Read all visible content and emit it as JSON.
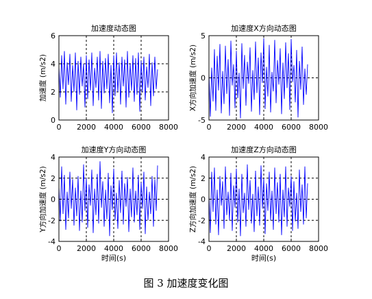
{
  "figure_caption": "图 3  加速度变化图",
  "colors": {
    "signal": "#0000ff",
    "axes": "#000000",
    "grid": "#000000"
  },
  "chart_data": [
    {
      "type": "line",
      "title": "加速度动态图",
      "xlabel": "",
      "ylabel": "加速度 (m/s2)",
      "xlim": [
        0,
        8000
      ],
      "ylim": [
        0,
        6
      ],
      "xticks": [
        0,
        2000,
        4000,
        6000,
        8000
      ],
      "yticks": [
        0,
        2,
        4,
        6
      ],
      "grid": true,
      "series": [
        {
          "x": [
            0,
            100,
            200,
            300,
            400,
            500,
            600,
            700,
            800,
            900,
            1000,
            1100,
            1200,
            1300,
            1400,
            1500,
            1600,
            1700,
            1800,
            1900,
            2000,
            2100,
            2200,
            2300,
            2400,
            2500,
            2600,
            2700,
            2800,
            2900,
            3000,
            3100,
            3200,
            3300,
            3400,
            3500,
            3600,
            3700,
            3800,
            3900,
            4000,
            4100,
            4200,
            4300,
            4400,
            4500,
            4600,
            4700,
            4800,
            4900,
            5000,
            5100,
            5200,
            5300,
            5400,
            5500,
            5600,
            5700,
            5800,
            5900,
            6000,
            6100,
            6200,
            6300,
            6400,
            6500,
            6600,
            6700,
            6800,
            6900,
            7000,
            7100,
            7200
          ],
          "y": [
            3.8,
            1.6,
            4.6,
            2.2,
            4.9,
            1.1,
            4.1,
            2.5,
            4.7,
            1.3,
            3.9,
            2.0,
            4.8,
            0.7,
            4.2,
            1.8,
            4.5,
            2.4,
            4.0,
            0.9,
            4.6,
            1.5,
            4.3,
            2.1,
            4.8,
            1.0,
            3.7,
            2.3,
            4.5,
            1.4,
            4.9,
            0.8,
            4.2,
            1.9,
            4.4,
            2.2,
            4.7,
            1.2,
            3.9,
            0.5,
            4.6,
            1.7,
            4.8,
            2.0,
            4.1,
            1.1,
            4.5,
            2.4,
            4.3,
            0.9,
            4.9,
            1.6,
            4.0,
            2.1,
            4.6,
            1.3,
            4.4,
            1.8,
            4.8,
            0.6,
            4.2,
            2.0,
            4.5,
            1.4,
            3.8,
            2.3,
            4.7,
            1.0,
            4.1,
            1.7,
            4.5,
            2.2,
            3.6
          ]
        }
      ]
    },
    {
      "type": "line",
      "title": "加速度X方向动态图",
      "xlabel": "",
      "ylabel": "X方向加速度 (m/s2)",
      "xlim": [
        0,
        8000
      ],
      "ylim": [
        -5,
        5
      ],
      "xticks": [
        0,
        2000,
        4000,
        6000,
        8000
      ],
      "yticks": [
        -5,
        0,
        5
      ],
      "grid": true,
      "series": [
        {
          "x": [
            0,
            100,
            200,
            300,
            400,
            500,
            600,
            700,
            800,
            900,
            1000,
            1100,
            1200,
            1300,
            1400,
            1500,
            1600,
            1700,
            1800,
            1900,
            2000,
            2100,
            2200,
            2300,
            2400,
            2500,
            2600,
            2700,
            2800,
            2900,
            3000,
            3100,
            3200,
            3300,
            3400,
            3500,
            3600,
            3700,
            3800,
            3900,
            4000,
            4100,
            4200,
            4300,
            4400,
            4500,
            4600,
            4700,
            4800,
            4900,
            5000,
            5100,
            5200,
            5300,
            5400,
            5500,
            5600,
            5700,
            5800,
            5900,
            6000,
            6100,
            6200,
            6300,
            6400,
            6500,
            6600,
            6700,
            6800,
            6900,
            7000,
            7100,
            7200
          ],
          "y": [
            0.5,
            -4.6,
            1.2,
            -2.8,
            3.4,
            -3.9,
            2.6,
            -1.5,
            4.0,
            -4.2,
            0.8,
            -3.1,
            3.8,
            -1.9,
            2.2,
            -4.5,
            4.4,
            -0.9,
            1.6,
            -3.6,
            3.2,
            -2.4,
            0.6,
            -4.8,
            4.1,
            -1.3,
            2.7,
            -3.3,
            1.9,
            -0.7,
            3.6,
            -4.0,
            0.9,
            -2.6,
            4.3,
            -1.8,
            2.4,
            -4.4,
            3.0,
            -0.6,
            4.7,
            -3.7,
            1.3,
            -2.2,
            3.9,
            -4.1,
            0.7,
            -1.6,
            4.5,
            -3.0,
            2.1,
            -0.8,
            3.5,
            -4.3,
            1.8,
            -2.5,
            4.2,
            -1.2,
            2.9,
            -3.8,
            4.6,
            -0.5,
            1.5,
            -2.9,
            3.3,
            -4.7,
            2.0,
            -1.4,
            3.7,
            -3.2,
            1.1,
            -2.0,
            1.6
          ]
        }
      ]
    },
    {
      "type": "line",
      "title": "加速度Y方向动态图",
      "xlabel": "时间(s)",
      "ylabel": "Y方向加速度 (m/s2)",
      "xlim": [
        0,
        8000
      ],
      "ylim": [
        -4,
        4
      ],
      "xticks": [
        0,
        2000,
        4000,
        6000,
        8000
      ],
      "yticks": [
        -4,
        -2,
        0,
        2,
        4
      ],
      "grid": true,
      "series": [
        {
          "x": [
            0,
            100,
            200,
            300,
            400,
            500,
            600,
            700,
            800,
            900,
            1000,
            1100,
            1200,
            1300,
            1400,
            1500,
            1600,
            1700,
            1800,
            1900,
            2000,
            2100,
            2200,
            2300,
            2400,
            2500,
            2600,
            2700,
            2800,
            2900,
            3000,
            3100,
            3200,
            3300,
            3400,
            3500,
            3600,
            3700,
            3800,
            3900,
            4000,
            4100,
            4200,
            4300,
            4400,
            4500,
            4600,
            4700,
            4800,
            4900,
            5000,
            5100,
            5200,
            5300,
            5400,
            5500,
            5600,
            5700,
            5800,
            5900,
            6000,
            6100,
            6200,
            6300,
            6400,
            6500,
            6600,
            6700,
            6800,
            6900,
            7000,
            7100,
            7200
          ],
          "y": [
            1.2,
            -2.1,
            3.1,
            -1.4,
            2.3,
            -2.9,
            0.7,
            -1.8,
            2.6,
            -0.9,
            1.9,
            -2.5,
            1.1,
            -1.6,
            2.2,
            -3.0,
            0.8,
            -2.2,
            3.3,
            -1.1,
            2.0,
            -2.7,
            1.4,
            -0.6,
            2.8,
            -3.2,
            1.0,
            -1.5,
            2.4,
            -2.3,
            3.6,
            -0.8,
            1.7,
            -2.6,
            0.9,
            -1.9,
            2.5,
            -3.5,
            1.3,
            -1.0,
            2.9,
            -2.0,
            0.6,
            -2.8,
            1.8,
            -1.3,
            2.7,
            -2.4,
            1.5,
            -0.7,
            2.1,
            -3.1,
            1.0,
            -1.7,
            3.0,
            -2.2,
            0.8,
            -1.5,
            2.3,
            -2.9,
            1.6,
            -0.9,
            2.6,
            -3.3,
            1.2,
            -2.0,
            0.7,
            -1.4,
            2.2,
            -2.6,
            1.9,
            -1.1,
            3.2
          ]
        }
      ]
    },
    {
      "type": "line",
      "title": "加速度Z方向动态图",
      "xlabel": "时间(s)",
      "ylabel": "Z方向加速度 (m/s2)",
      "xlim": [
        0,
        8000
      ],
      "ylim": [
        -4,
        4
      ],
      "xticks": [
        0,
        2000,
        4000,
        6000,
        8000
      ],
      "yticks": [
        -4,
        -2,
        0,
        2,
        4
      ],
      "grid": true,
      "series": [
        {
          "x": [
            0,
            100,
            200,
            300,
            400,
            500,
            600,
            700,
            800,
            900,
            1000,
            1100,
            1200,
            1300,
            1400,
            1500,
            1600,
            1700,
            1800,
            1900,
            2000,
            2100,
            2200,
            2300,
            2400,
            2500,
            2600,
            2700,
            2800,
            2900,
            3000,
            3100,
            3200,
            3300,
            3400,
            3500,
            3600,
            3700,
            3800,
            3900,
            4000,
            4100,
            4200,
            4300,
            4400,
            4500,
            4600,
            4700,
            4800,
            4900,
            5000,
            5100,
            5200,
            5300,
            5400,
            5500,
            5600,
            5700,
            5800,
            5900,
            6000,
            6100,
            6200,
            6300,
            6400,
            6500,
            6600,
            6700,
            6800,
            6900,
            7000,
            7100,
            7200
          ],
          "y": [
            0.4,
            -3.2,
            2.6,
            -1.2,
            3.0,
            -2.4,
            0.9,
            -3.4,
            2.2,
            -0.6,
            1.7,
            -2.8,
            3.1,
            -1.5,
            0.7,
            -2.0,
            2.5,
            -3.0,
            1.3,
            -0.8,
            2.9,
            -2.2,
            1.0,
            -3.5,
            2.4,
            -1.3,
            0.6,
            -2.6,
            3.3,
            -1.0,
            1.8,
            -2.3,
            0.5,
            -3.1,
            2.7,
            -1.6,
            1.2,
            -2.5,
            3.2,
            -0.9,
            2.0,
            -3.3,
            1.5,
            -1.1,
            2.6,
            -2.0,
            0.8,
            -2.9,
            3.0,
            -1.4,
            1.6,
            -2.2,
            2.4,
            -3.4,
            0.9,
            -1.7,
            3.1,
            -2.6,
            1.1,
            -0.7,
            2.2,
            -3.0,
            1.7,
            -2.1,
            0.6,
            -2.8,
            2.8,
            -1.2,
            1.4,
            -2.4,
            3.1,
            -1.8,
            1.5
          ]
        }
      ]
    }
  ]
}
